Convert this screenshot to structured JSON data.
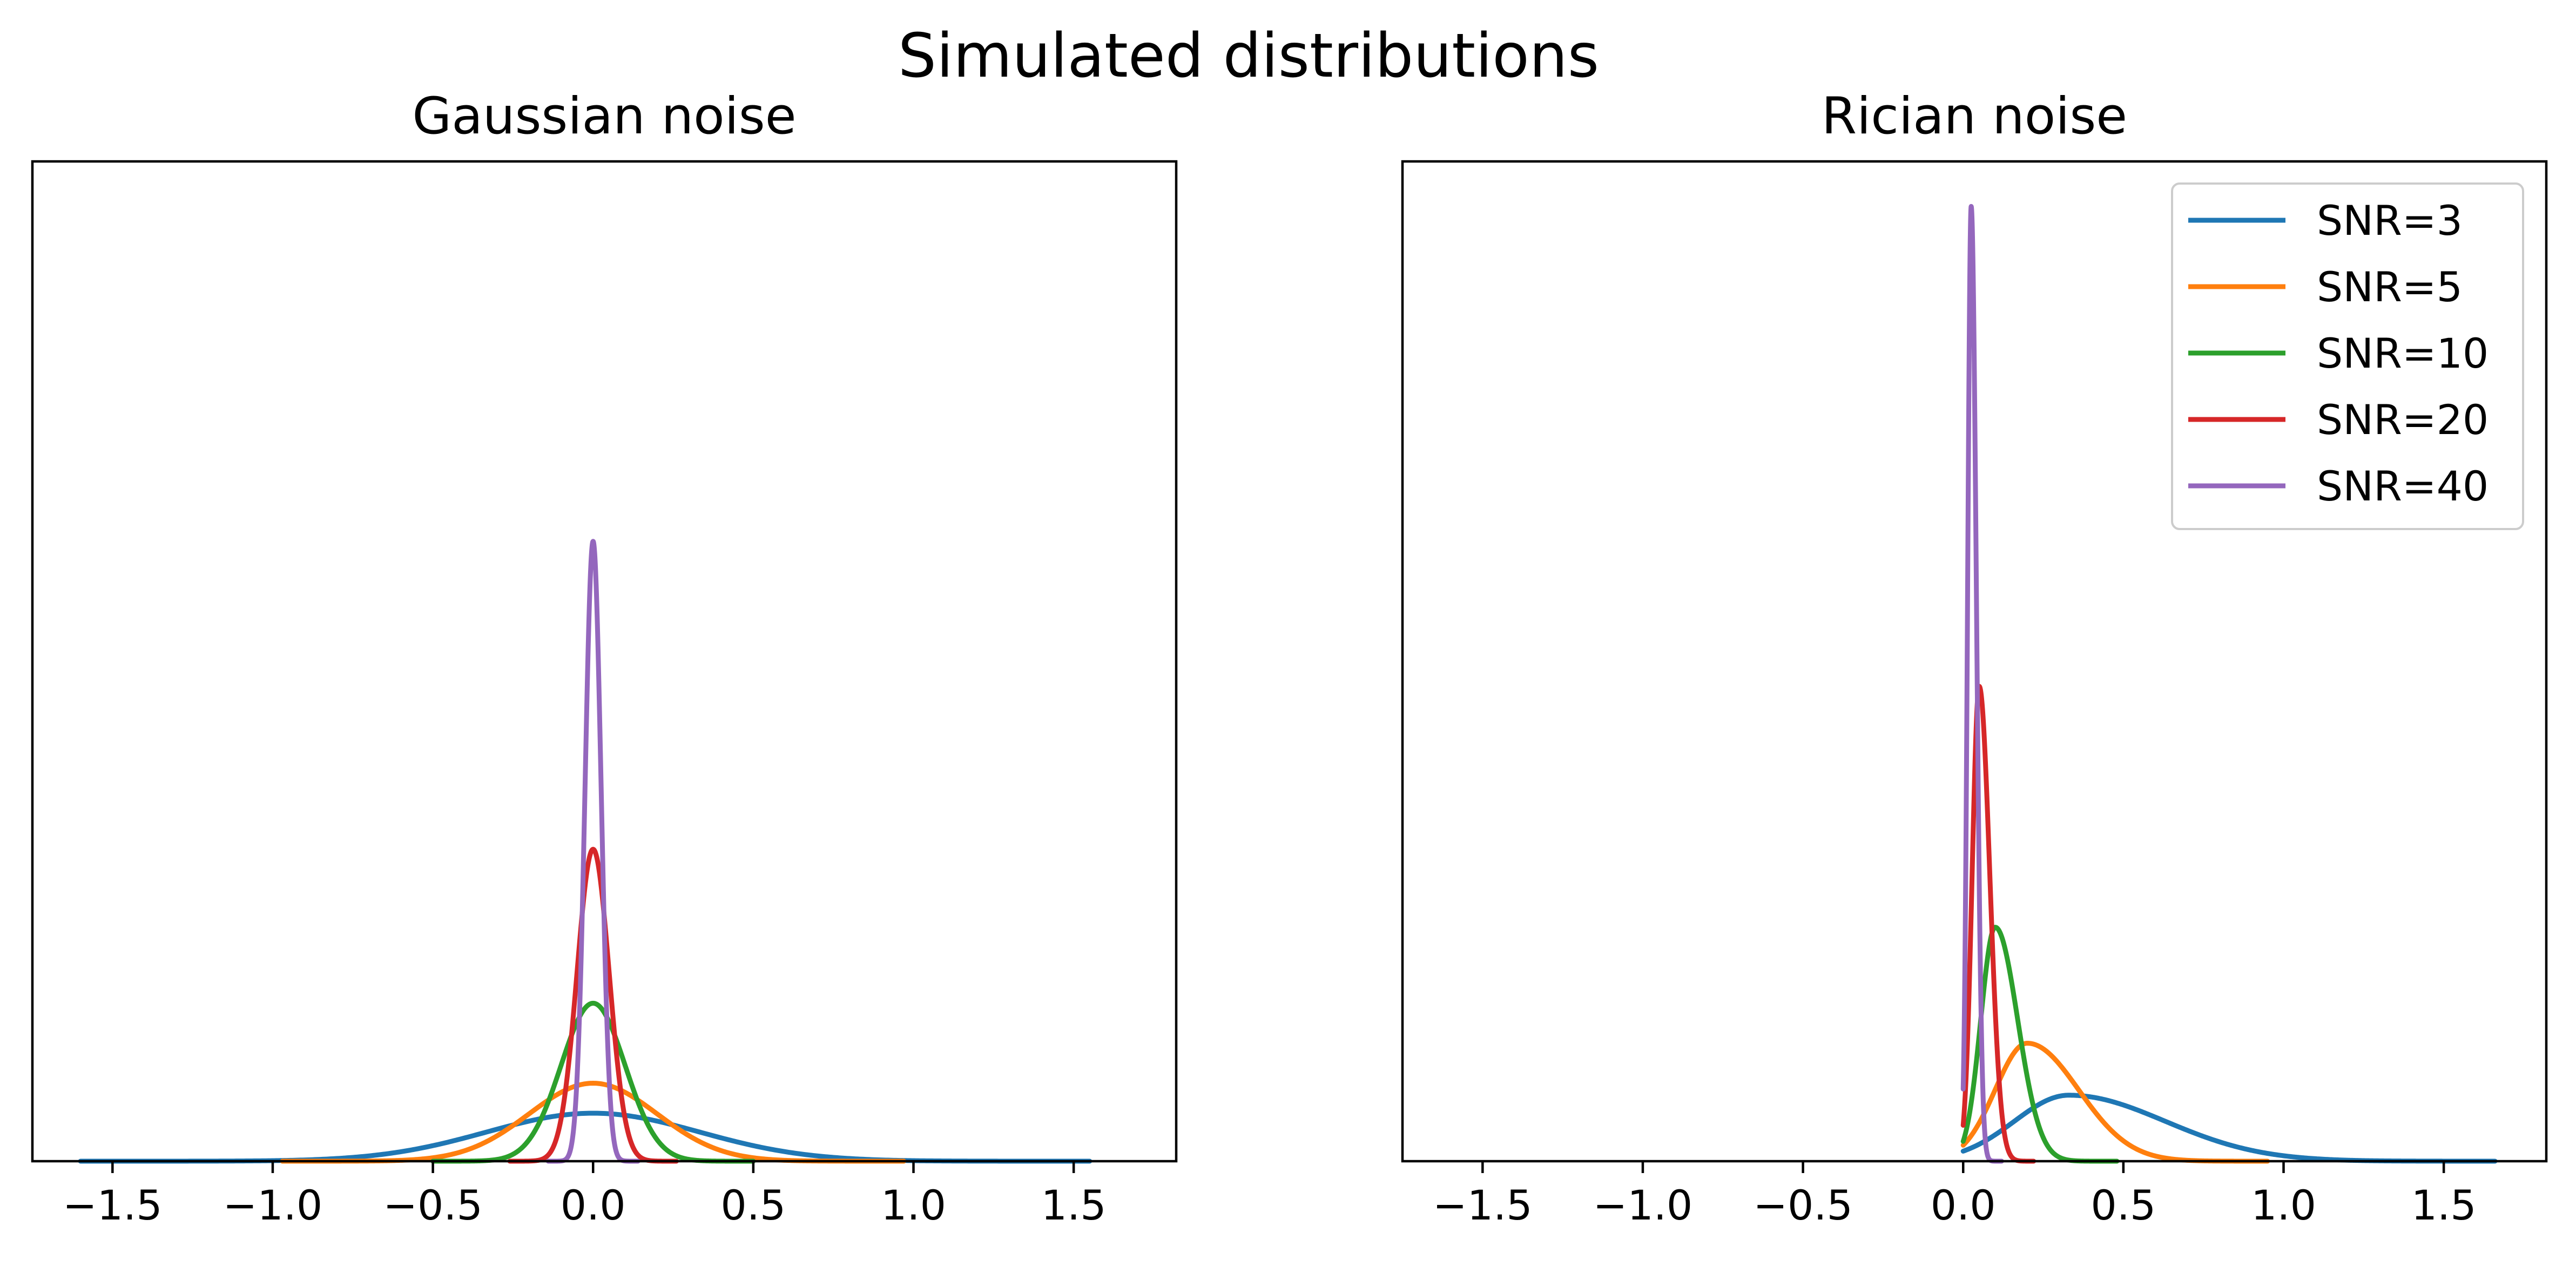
{
  "figure": {
    "suptitle": "Simulated distributions"
  },
  "series": [
    {
      "name": "SNR=3",
      "color": "#1f77b4"
    },
    {
      "name": "SNR=5",
      "color": "#ff7f0e"
    },
    {
      "name": "SNR=10",
      "color": "#2ca02c"
    },
    {
      "name": "SNR=20",
      "color": "#d62728"
    },
    {
      "name": "SNR=40",
      "color": "#9467bd"
    }
  ],
  "chart_data": [
    {
      "type": "line",
      "title": "Gaussian noise",
      "xlabel": "",
      "ylabel": "",
      "xlim": [
        -1.75,
        1.82
      ],
      "ylim": [
        0,
        1
      ],
      "xticks": [
        -1.5,
        -1.0,
        -0.5,
        0.0,
        0.5,
        1.0,
        1.5
      ],
      "xtick_labels": [
        "−1.5",
        "−1.0",
        "−0.5",
        "0.0",
        "0.5",
        "1.0",
        "1.5"
      ],
      "y_ticks_shown": false,
      "grid": false,
      "legend": null,
      "curve_model": "gaussian",
      "series": [
        {
          "name": "SNR=3",
          "center": 0.0,
          "peak": 0.048,
          "sd": 0.333,
          "x_range": [
            -1.6,
            1.55
          ]
        },
        {
          "name": "SNR=5",
          "center": 0.0,
          "peak": 0.078,
          "sd": 0.2,
          "x_range": [
            -0.97,
            0.97
          ]
        },
        {
          "name": "SNR=10",
          "center": 0.0,
          "peak": 0.158,
          "sd": 0.1,
          "x_range": [
            -0.5,
            0.5
          ]
        },
        {
          "name": "SNR=20",
          "center": 0.0,
          "peak": 0.312,
          "sd": 0.05,
          "x_range": [
            -0.26,
            0.26
          ]
        },
        {
          "name": "SNR=40",
          "center": 0.0,
          "peak": 0.62,
          "sd": 0.025,
          "x_range": [
            -0.14,
            0.14
          ]
        }
      ]
    },
    {
      "type": "line",
      "title": "Rician noise",
      "xlabel": "",
      "ylabel": "",
      "xlim": [
        -1.75,
        1.82
      ],
      "ylim": [
        0,
        1
      ],
      "xticks": [
        -1.5,
        -1.0,
        -0.5,
        0.0,
        0.5,
        1.0,
        1.5
      ],
      "xtick_labels": [
        "−1.5",
        "−1.0",
        "−0.5",
        "0.0",
        "0.5",
        "1.0",
        "1.5"
      ],
      "y_ticks_shown": false,
      "grid": false,
      "legend": "upper right",
      "curve_model": "skewed",
      "series": [
        {
          "name": "SNR=3",
          "center": 0.33,
          "peak": 0.066,
          "sd_left": 0.17,
          "sd_right": 0.3,
          "x_range": [
            0.0,
            1.66
          ]
        },
        {
          "name": "SNR=5",
          "center": 0.2,
          "peak": 0.118,
          "sd_left": 0.1,
          "sd_right": 0.16,
          "x_range": [
            0.0,
            0.95
          ]
        },
        {
          "name": "SNR=10",
          "center": 0.1,
          "peak": 0.234,
          "sd_left": 0.045,
          "sd_right": 0.07,
          "x_range": [
            0.0,
            0.48
          ]
        },
        {
          "name": "SNR=20",
          "center": 0.05,
          "peak": 0.475,
          "sd_left": 0.022,
          "sd_right": 0.033,
          "x_range": [
            0.0,
            0.22
          ]
        },
        {
          "name": "SNR=40",
          "center": 0.025,
          "peak": 0.955,
          "sd_left": 0.011,
          "sd_right": 0.016,
          "x_range": [
            0.0,
            0.12
          ]
        }
      ]
    }
  ]
}
